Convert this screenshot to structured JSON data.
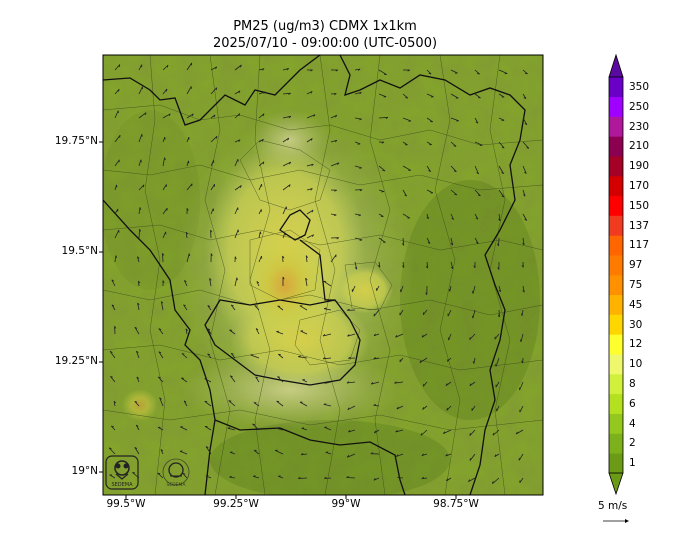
{
  "title": {
    "line1": "PM25 (ug/m3) CDMX 1x1km",
    "line2": "2025/07/10 - 09:00:00 (UTC-0500)"
  },
  "axes": {
    "y_ticks": [
      {
        "label": "19.75°N",
        "value": 19.75
      },
      {
        "label": "19.5°N",
        "value": 19.5
      },
      {
        "label": "19.25°N",
        "value": 19.25
      },
      {
        "label": "19°N",
        "value": 19.0
      }
    ],
    "x_ticks": [
      {
        "label": "99.5°W",
        "value": -99.5
      },
      {
        "label": "99.25°W",
        "value": -99.25
      },
      {
        "label": "99°W",
        "value": -99.0
      },
      {
        "label": "98.75°W",
        "value": -98.75
      }
    ]
  },
  "colorbar": {
    "levels": [
      "1",
      "2",
      "4",
      "6",
      "8",
      "10",
      "12",
      "30",
      "45",
      "75",
      "97",
      "117",
      "137",
      "150",
      "170",
      "190",
      "210",
      "230",
      "250",
      "350"
    ],
    "colors": [
      "#6b9a16",
      "#7db11c",
      "#94c81f",
      "#b3e01f",
      "#d1f03b",
      "#eff86c",
      "#ffff2e",
      "#ffd700",
      "#ffb300",
      "#ff9000",
      "#ff7a00",
      "#ff6600",
      "#f03b20",
      "#ff0000",
      "#d40000",
      "#a50026",
      "#8b0050",
      "#b0189b",
      "#a000ff",
      "#6a00c8"
    ]
  },
  "wind_scale": {
    "label": "5 m/s"
  },
  "logos": {
    "logo1": "SEDEMA",
    "logo2": "SEDEMA"
  }
}
